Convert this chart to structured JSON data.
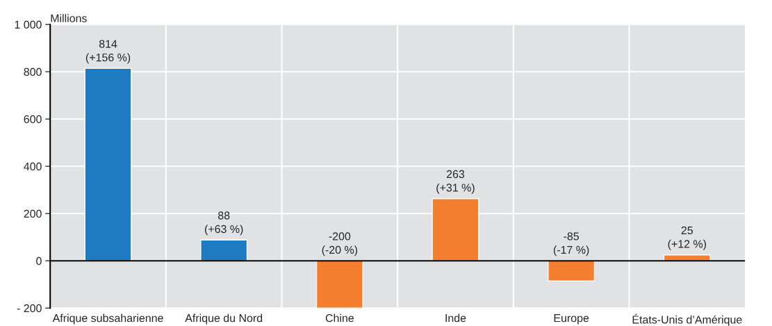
{
  "chart_data": {
    "type": "bar",
    "ylabel": "Millions",
    "categories": [
      "Afrique subsaharienne",
      "Afrique du Nord",
      "Chine",
      "Inde",
      "Europe",
      "États-Unis d’Amérique"
    ],
    "values": [
      814,
      88,
      -200,
      263,
      -85,
      25
    ],
    "colors": [
      "#1f7bc1",
      "#1f7bc1",
      "#f47f31",
      "#f47f31",
      "#f47f31",
      "#f47f31"
    ],
    "value_labels": [
      "814\n(+156 %)",
      "88\n(+63 %)",
      "-200\n(-20 %)",
      "263\n(+31 %)",
      "-85\n(-17 %)",
      "25\n(+12 %)"
    ],
    "ylim": [
      -200,
      1000
    ],
    "yticks": [
      {
        "value": -200,
        "label": "- 200"
      },
      0,
      200,
      400,
      600,
      800,
      {
        "value": 1000,
        "label": "1 000"
      }
    ],
    "grid": true,
    "legend": false
  }
}
